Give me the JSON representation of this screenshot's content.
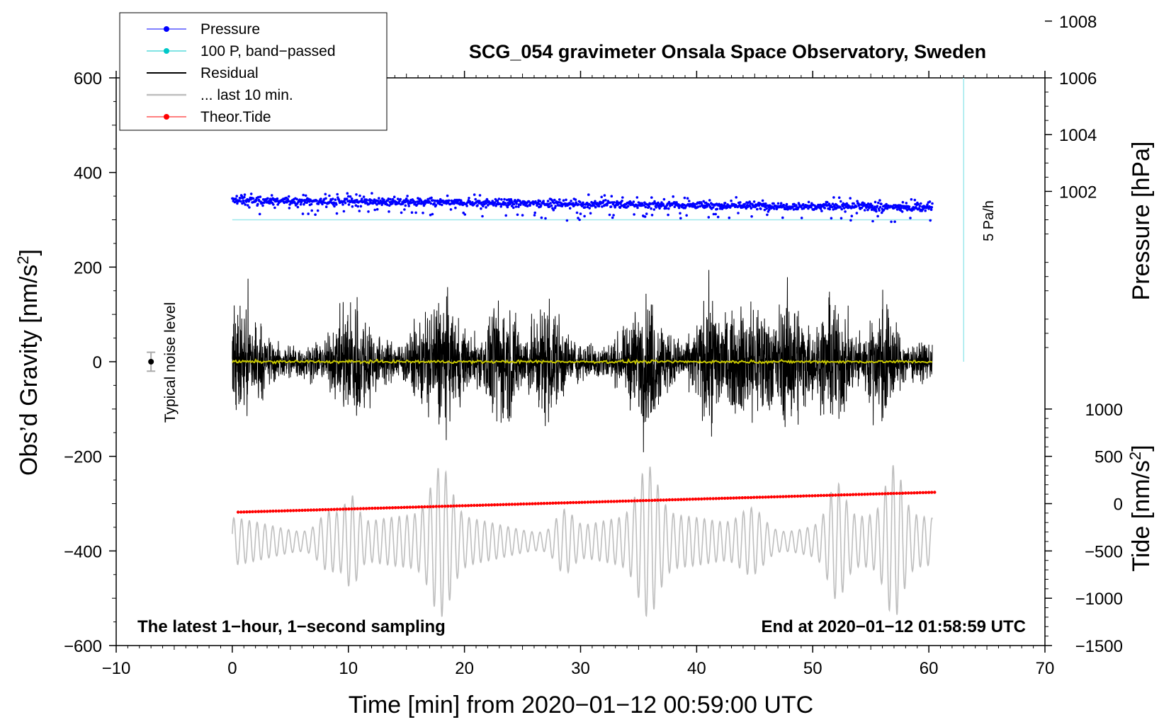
{
  "chart_data": {
    "type": "line",
    "title": "SCG_054 gravimeter Onsala Space Observatory, Sweden",
    "xlabel": "Time [min] from 2020−01−12 00:59:00 UTC",
    "ylabel": "Obs’d Gravity [nm/s",
    "ylabel_sup": "2",
    "ylabel_close": "]",
    "y2label": "Pressure [hPa]",
    "y3label": "Tide [nm/s",
    "y3label_sup": "2",
    "y3label_close": "]",
    "xlim": [
      -10,
      70
    ],
    "ylim": [
      -600,
      600
    ],
    "xticks": [
      -10,
      0,
      10,
      20,
      30,
      40,
      50,
      60,
      70
    ],
    "xtick_labels": [
      "−10",
      "0",
      "10",
      "20",
      "30",
      "40",
      "50",
      "60",
      "70"
    ],
    "yticks": [
      600,
      400,
      200,
      0,
      -200,
      -400,
      -600
    ],
    "ytick_labels": [
      "600",
      "400",
      "200",
      "0",
      "−200",
      "−400",
      "−600"
    ],
    "pressure_ticks": [
      1008,
      1006,
      1004,
      1002
    ],
    "pressure_tick_labels": [
      "1008",
      "1006",
      "1004",
      "1002"
    ],
    "pressure_axis": {
      "hpa_at_gravity_0": 996,
      "gravity_per_hpa": 60
    },
    "tide_ticks": [
      1000,
      500,
      0,
      -500,
      -1000,
      -1500
    ],
    "tide_tick_labels": [
      "1000",
      "500",
      "0",
      "−500",
      "−1000",
      "−1500"
    ],
    "tide_axis": {
      "gravity_at_tide_0": -300,
      "gravity_per_tide": 0.2
    },
    "legend": [
      {
        "label": "Pressure",
        "color": "#0000ff",
        "marker": true
      },
      {
        "label": "100 P, band−passed",
        "color": "#00c8c8",
        "marker": true
      },
      {
        "label": "Residual",
        "color": "#000000",
        "marker": false
      },
      {
        "label": "... last 10 min.",
        "color": "#bebebe",
        "marker": false
      },
      {
        "label": "Theor.Tide",
        "color": "#ff0000",
        "marker": true
      }
    ],
    "series": [
      {
        "name": "Pressure",
        "color": "#0000ff",
        "x_range": [
          0,
          60.3
        ],
        "y_start": 341,
        "y_end": 326,
        "scatter": 12
      },
      {
        "name": "100 P, band−passed",
        "color": "#9de8ec",
        "x_range": [
          0,
          60.3
        ],
        "y": 300
      },
      {
        "name": "Residual",
        "color": "#000000",
        "x_range": [
          0,
          60.3
        ],
        "center": 0,
        "amplitude_typical": 60,
        "amplitude_max": 195
      },
      {
        "name": "Residual (smoothed)",
        "color": "#c8c800",
        "x_range": [
          0,
          60.3
        ],
        "y": 0
      },
      {
        "name": "... last 10 min.",
        "color": "#bebebe",
        "x_range": [
          0,
          60.3
        ],
        "center": -380,
        "amplitude_max": 180
      },
      {
        "name": "Theor.Tide",
        "color": "#ff0000",
        "x_range": [
          0.5,
          60.5
        ],
        "y_start": -318,
        "y_end": -276
      }
    ],
    "scale_bar": {
      "label": "5 Pa/h",
      "x": 63,
      "y_from": 0,
      "y_to": 600,
      "color": "#00c8c8"
    },
    "noise_marker": {
      "label": "Typical noise level",
      "x": -7,
      "y": 0,
      "error": 20
    },
    "bottom_left_note": "The latest 1−hour, 1−second sampling",
    "bottom_right_note": "End at 2020−01−12 01:58:59 UTC"
  }
}
